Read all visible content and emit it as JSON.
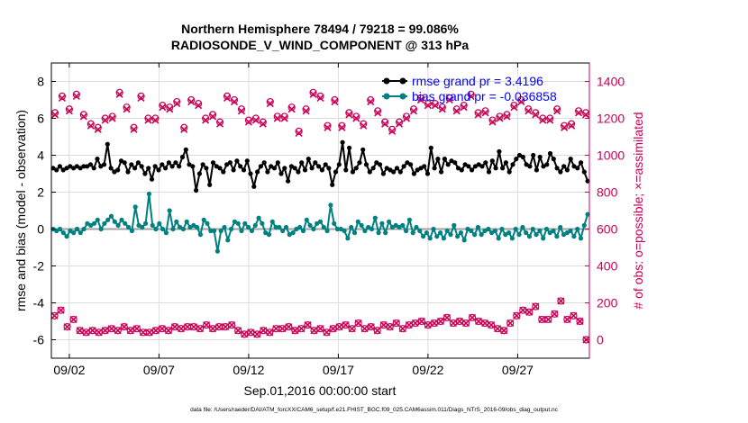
{
  "chart_data": {
    "type": "line",
    "title_line1": "Northern Hemisphere 78494 / 79218 = 99.086%",
    "title_line2": "RADIOSONDE_V_WIND_COMPONENT @ 313 hPa",
    "xlabel": "Sep.01,2016 00:00:00 start",
    "ylabel_left": "rmse and bias (model - observation)",
    "ylabel_right": "# of obs: o=possible; ×=assimilated",
    "footer": "data file: /Users/raeder/DAI/ATM_forcXX/CAM6_setup/f.e21.FHIST_BGC.f09_025.CAM6assim.011/Diags_NTrS_2016-09/obs_diag_output.nc",
    "x_ticks": [
      {
        "label": "09/02",
        "day": 2
      },
      {
        "label": "09/07",
        "day": 7
      },
      {
        "label": "09/12",
        "day": 12
      },
      {
        "label": "09/17",
        "day": 17
      },
      {
        "label": "09/22",
        "day": 22
      },
      {
        "label": "09/27",
        "day": 27
      }
    ],
    "x_range": [
      1.0,
      31.0
    ],
    "ylim_left": [
      -7,
      9
    ],
    "yticks_left": [
      -6,
      -4,
      -2,
      0,
      2,
      4,
      6,
      8
    ],
    "ylim_right": [
      -100,
      1500
    ],
    "yticks_right": [
      0,
      200,
      400,
      600,
      800,
      1000,
      1200,
      1400
    ],
    "legend": {
      "placement": "top-right",
      "entries": [
        {
          "label": "rmse grand pr = 3.4196",
          "color": "#000000"
        },
        {
          "label": "bias grand pr = -0.036858",
          "color": "#008080"
        }
      ]
    },
    "colors": {
      "rmse": "#000000",
      "bias": "#008080",
      "obs": "#cc0055",
      "zero_line": "#a0a0a0",
      "right_axis": "#cc0055",
      "legend_text": "#0000ff"
    },
    "series": [
      {
        "name": "rmse",
        "axis": "left",
        "values": [
          3.3,
          3.2,
          3.4,
          3.2,
          3.3,
          3.4,
          3.3,
          3.4,
          3.3,
          3.4,
          3.4,
          3.5,
          3.3,
          3.8,
          3.4,
          3.5,
          4.6,
          3.3,
          3.1,
          3.2,
          3.7,
          3.6,
          3.1,
          3.5,
          3.3,
          3.6,
          3.4,
          3.0,
          3.3,
          2.7,
          3.4,
          3.2,
          3.5,
          3.3,
          3.6,
          3.4,
          3.6,
          3.4,
          3.9,
          4.3,
          3.5,
          3.4,
          2.1,
          3.0,
          3.5,
          3.3,
          2.4,
          3.6,
          3.4,
          3.3,
          3.1,
          3.5,
          3.6,
          3.2,
          3.7,
          3.4,
          3.2,
          3.7,
          3.0,
          2.3,
          3.1,
          3.4,
          3.6,
          3.1,
          3.4,
          3.3,
          3.6,
          3.0,
          3.3,
          2.6,
          3.4,
          3.3,
          3.1,
          3.6,
          3.2,
          3.8,
          3.3,
          3.6,
          3.4,
          3.2,
          3.5,
          3.3,
          2.4,
          3.1,
          3.5,
          4.7,
          3.2,
          4.4,
          3.1,
          3.3,
          3.6,
          4.3,
          3.5,
          3.1,
          3.3,
          3.6,
          3.5,
          3.0,
          3.3,
          3.2,
          3.1,
          3.3,
          3.1,
          3.4,
          3.6,
          3.5,
          3.0,
          3.2,
          3.3,
          3.4,
          3.0,
          4.4,
          3.3,
          3.8,
          3.1,
          3.8,
          3.5,
          3.7,
          3.6,
          3.3,
          3.2,
          3.5,
          3.4,
          3.2,
          3.4,
          3.5,
          3.4,
          3.6,
          3.1,
          3.7,
          3.3,
          4.2,
          3.3,
          3.6,
          3.1,
          3.5,
          3.8,
          4.0,
          3.9,
          3.5,
          3.4,
          4.0,
          3.2,
          3.9,
          3.4,
          3.5,
          4.1,
          3.8,
          3.3,
          3.1,
          3.4,
          3.2,
          3.8,
          3.4,
          3.3,
          3.6,
          3.1,
          2.6
        ]
      },
      {
        "name": "bias",
        "axis": "left",
        "values": [
          0.0,
          -0.1,
          0.0,
          -0.2,
          -0.4,
          -0.1,
          -0.2,
          0.0,
          -0.2,
          0.0,
          0.3,
          0.2,
          0.3,
          0.5,
          0.0,
          0.3,
          0.5,
          0.7,
          0.4,
          0.2,
          0.5,
          0.3,
          0.1,
          -0.1,
          1.2,
          0.2,
          0.1,
          0.3,
          1.9,
          0.2,
          0.0,
          0.3,
          0.0,
          -0.2,
          1.0,
          0.0,
          0.4,
          0.1,
          0.0,
          0.4,
          0.1,
          0.2,
          0.1,
          -0.3,
          0.5,
          0.3,
          -0.1,
          -0.1,
          -1.2,
          -0.1,
          0.1,
          -0.6,
          0.0,
          0.4,
          0.3,
          -0.1,
          0.3,
          0.1,
          -0.1,
          0.2,
          0.6,
          0.3,
          -0.2,
          -0.3,
          0.4,
          0.1,
          0.1,
          -0.1,
          0.1,
          -0.3,
          -0.2,
          0.0,
          0.1,
          -0.1,
          0.5,
          0.2,
          0.0,
          0.3,
          0.4,
          0.1,
          -0.1,
          1.3,
          0.3,
          0.0,
          0.0,
          -0.1,
          -0.5,
          0.1,
          -0.2,
          0.4,
          0.2,
          -0.1,
          0.1,
          0.0,
          0.6,
          -0.2,
          0.3,
          -0.2,
          0.4,
          0.1,
          0.2,
          0.1,
          0.2,
          -0.1,
          0.5,
          -0.2,
          0.1,
          -0.1,
          -0.4,
          -0.2,
          -0.5,
          0.0,
          -0.4,
          -0.2,
          -0.5,
          -0.1,
          -0.3,
          0.2,
          -0.4,
          -0.2,
          -0.6,
          0.0,
          -0.1,
          -0.3,
          0.1,
          -0.3,
          -0.1,
          0.0,
          -0.2,
          -0.1,
          -0.5,
          0.0,
          -0.3,
          -0.2,
          -0.5,
          0.0,
          -0.3,
          0.1,
          -0.2,
          -0.4,
          0.0,
          -0.3,
          -0.1,
          -0.5,
          0.0,
          -0.2,
          -0.1,
          -0.4,
          0.1,
          -0.3,
          -0.2,
          -0.1,
          -0.4,
          0.0,
          -0.5,
          0.2,
          0.8
        ]
      },
      {
        "name": "obs possible",
        "axis": "right",
        "marker": "circle",
        "values": [
          1230,
          1320,
          1250,
          1330,
          1220,
          1170,
          1150,
          1200,
          1210,
          1340,
          1260,
          1150,
          1320,
          1200,
          1200,
          1270,
          1260,
          1290,
          1150,
          1300,
          1280,
          1200,
          1220,
          1180,
          1320,
          1300,
          1250,
          1190,
          1200,
          1180,
          1290,
          1210,
          1210,
          1260,
          1130,
          1250,
          1340,
          1320,
          1160,
          1300,
          1160,
          1230,
          1210,
          1170,
          1300,
          1240,
          1180,
          1140,
          1180,
          1210,
          1250,
          1310,
          1280,
          1280,
          1260,
          1310,
          1250,
          1270,
          1330,
          1230,
          1240,
          1190,
          1210,
          1220,
          1270,
          1300,
          1250,
          1230,
          1200,
          1200,
          1250,
          1160,
          1170,
          1240,
          1230
        ],
        "assimilated": [
          1220,
          1310,
          1240,
          1320,
          1210,
          1160,
          1140,
          1190,
          1200,
          1330,
          1250,
          1140,
          1310,
          1190,
          1190,
          1260,
          1250,
          1280,
          1140,
          1290,
          1270,
          1190,
          1210,
          1170,
          1310,
          1290,
          1240,
          1180,
          1190,
          1170,
          1280,
          1200,
          1200,
          1250,
          1120,
          1240,
          1330,
          1310,
          1150,
          1290,
          1150,
          1220,
          1200,
          1160,
          1290,
          1230,
          1170,
          1130,
          1170,
          1200,
          1240,
          1300,
          1270,
          1270,
          1250,
          1300,
          1240,
          1260,
          1320,
          1220,
          1230,
          1180,
          1200,
          1210,
          1260,
          1290,
          1240,
          1220,
          1190,
          1190,
          1240,
          1150,
          1160,
          1230,
          1220
        ]
      },
      {
        "name": "obs bottom",
        "axis": "right",
        "values": [
          130,
          160,
          70,
          110,
          50,
          40,
          50,
          40,
          50,
          60,
          50,
          70,
          50,
          60,
          40,
          40,
          50,
          60,
          50,
          70,
          60,
          70,
          70,
          60,
          80,
          60,
          70,
          70,
          80,
          50,
          30,
          40,
          30,
          50,
          40,
          60,
          60,
          70,
          50,
          60,
          80,
          50,
          60,
          40,
          60,
          70,
          80,
          60,
          90,
          60,
          70,
          50,
          80,
          70,
          90,
          60,
          80,
          90,
          100,
          80,
          90,
          100,
          120,
          90,
          100,
          90,
          120,
          100,
          90,
          80,
          60,
          50,
          90,
          130,
          160,
          150,
          180,
          110,
          110,
          140,
          210,
          110,
          130,
          100,
          0
        ]
      }
    ]
  }
}
